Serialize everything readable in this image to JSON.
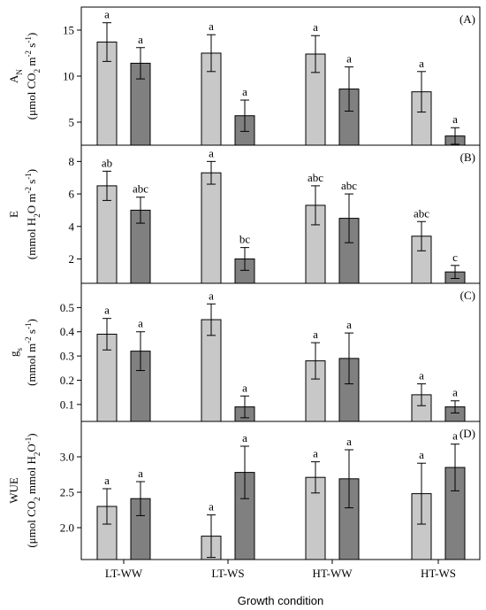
{
  "chart_data": {
    "type": "bar",
    "categories": [
      "LT-WW",
      "LT-WS",
      "HT-WW",
      "HT-WS"
    ],
    "xlabel": "Growth condition",
    "series_colors": [
      "#c8c8c8",
      "#808080"
    ],
    "panels": [
      {
        "letter": "(A)",
        "ylabel_parts": [
          "A",
          "N",
          "(μmol CO",
          "2",
          " m",
          "-2",
          " s",
          "-1",
          ")"
        ],
        "ylim": [
          2.5,
          17.5
        ],
        "yticks": [
          5,
          10,
          15
        ],
        "ytick_labels": [
          "5",
          "10",
          "15"
        ],
        "values": [
          [
            13.7,
            11.4
          ],
          [
            12.5,
            5.7
          ],
          [
            12.4,
            8.6
          ],
          [
            8.3,
            3.5
          ]
        ],
        "errors": [
          [
            2.1,
            1.7
          ],
          [
            2.0,
            1.7
          ],
          [
            2.0,
            2.4
          ],
          [
            2.2,
            0.9
          ]
        ],
        "letters": [
          [
            "a",
            "a"
          ],
          [
            "a",
            "a"
          ],
          [
            "a",
            "a"
          ],
          [
            "a",
            "a"
          ]
        ]
      },
      {
        "letter": "(B)",
        "ylabel_parts": [
          "E",
          "",
          "(mmol H",
          "2",
          "O m",
          "-2",
          " s",
          "-1",
          ")"
        ],
        "ylim": [
          0.5,
          9.0
        ],
        "yticks": [
          2,
          4,
          6,
          8
        ],
        "ytick_labels": [
          "2",
          "4",
          "6",
          "8"
        ],
        "values": [
          [
            6.5,
            5.0
          ],
          [
            7.3,
            2.0
          ],
          [
            5.3,
            4.5
          ],
          [
            3.4,
            1.2
          ]
        ],
        "errors": [
          [
            0.9,
            0.8
          ],
          [
            0.7,
            0.7
          ],
          [
            1.2,
            1.5
          ],
          [
            0.9,
            0.4
          ]
        ],
        "letters": [
          [
            "ab",
            "abc"
          ],
          [
            "a",
            "bc"
          ],
          [
            "abc",
            "abc"
          ],
          [
            "abc",
            "c"
          ]
        ]
      },
      {
        "letter": "(C)",
        "ylabel_parts": [
          "g",
          "s",
          "(mmol m",
          "-2",
          " s",
          "-1",
          ")",
          "",
          ""
        ],
        "ylim": [
          0.03,
          0.6
        ],
        "yticks": [
          0.1,
          0.2,
          0.3,
          0.4,
          0.5
        ],
        "ytick_labels": [
          "0.1",
          "0.2",
          "0.3",
          "0.4",
          "0.5"
        ],
        "values": [
          [
            0.39,
            0.32
          ],
          [
            0.45,
            0.09
          ],
          [
            0.28,
            0.29
          ],
          [
            0.14,
            0.09
          ]
        ],
        "errors": [
          [
            0.065,
            0.08
          ],
          [
            0.065,
            0.045
          ],
          [
            0.075,
            0.105
          ],
          [
            0.045,
            0.025
          ]
        ],
        "letters": [
          [
            "a",
            "a"
          ],
          [
            "a",
            "a"
          ],
          [
            "a",
            "a"
          ],
          [
            "a",
            "a"
          ]
        ]
      },
      {
        "letter": "(D)",
        "ylabel_parts": [
          "WUE",
          "",
          "(μmol CO",
          "2",
          " mmol H",
          "2",
          "O",
          "-1",
          ")"
        ],
        "ylim": [
          1.55,
          3.5
        ],
        "yticks": [
          2.0,
          2.5,
          3.0
        ],
        "ytick_labels": [
          "2.0",
          "2.5",
          "3.0"
        ],
        "values": [
          [
            2.3,
            2.41
          ],
          [
            1.88,
            2.78
          ],
          [
            2.71,
            2.69
          ],
          [
            2.48,
            2.85
          ]
        ],
        "errors": [
          [
            0.25,
            0.24
          ],
          [
            0.3,
            0.37
          ],
          [
            0.22,
            0.41
          ],
          [
            0.43,
            0.33
          ]
        ],
        "letters": [
          [
            "a",
            "a"
          ],
          [
            "a",
            "a"
          ],
          [
            "a",
            "a"
          ],
          [
            "a",
            "a"
          ]
        ]
      }
    ]
  }
}
